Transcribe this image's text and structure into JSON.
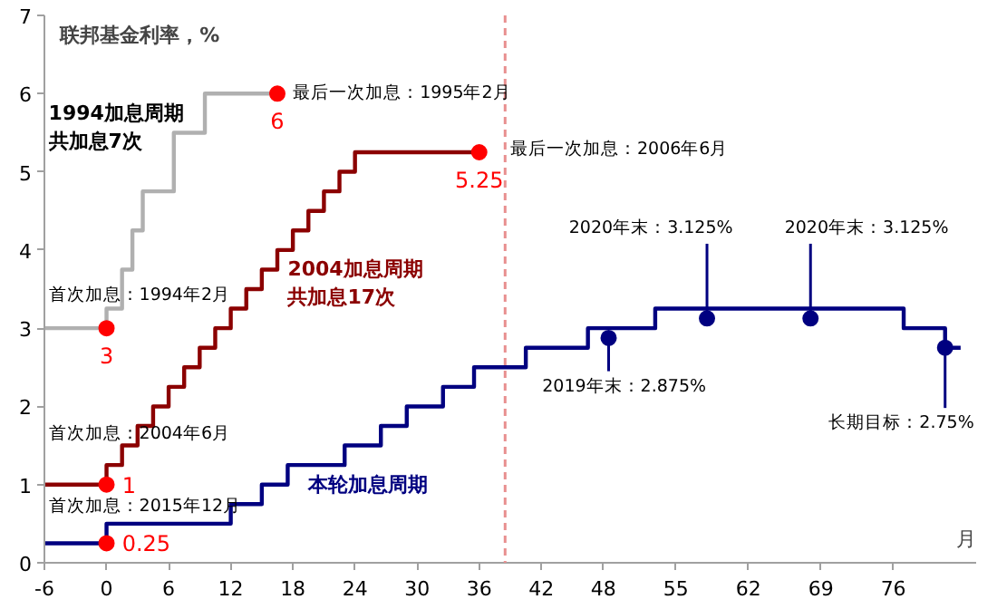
{
  "chart_data": {
    "type": "step",
    "ylabel": "联邦基金利率，%",
    "xlabel": "月",
    "xlim": [
      -6,
      84
    ],
    "ylim": [
      0,
      7
    ],
    "xticks": [
      -6,
      0,
      6,
      12,
      18,
      24,
      30,
      36,
      42,
      48,
      55,
      62,
      69,
      76
    ],
    "yticks": [
      0,
      1,
      2,
      3,
      4,
      5,
      6,
      7
    ],
    "grid": false,
    "line_style": "solid",
    "series": [
      {
        "name": "1994加息周期共加息7次",
        "color": "#b0b0b0",
        "x": [
          -6,
          0,
          1.5,
          2.5,
          3.5,
          6.5,
          9.5,
          12,
          16.5
        ],
        "values": [
          3,
          3.25,
          3.75,
          4.25,
          4.75,
          5.5,
          6,
          6,
          6
        ]
      },
      {
        "name": "2004加息周期共加息17次",
        "color": "#8b0000",
        "x": [
          -6,
          0,
          1.5,
          3,
          4.5,
          6,
          7.5,
          9,
          10.5,
          12,
          13.5,
          15,
          16.5,
          18,
          19.5,
          21,
          22.5,
          24,
          36
        ],
        "values": [
          1,
          1.25,
          1.5,
          1.75,
          2,
          2.25,
          2.5,
          2.75,
          3,
          3.25,
          3.5,
          3.75,
          4,
          4.25,
          4.5,
          4.75,
          5,
          5.25,
          5.25
        ]
      },
      {
        "name": "本轮加息周期",
        "color": "#000080",
        "x": [
          -6,
          0,
          12,
          15,
          17.5,
          23,
          26.5,
          29,
          32.5,
          35.5,
          40.5,
          46.5,
          53,
          77,
          81,
          82.5
        ],
        "values": [
          0.25,
          0.5,
          0.75,
          1,
          1.25,
          1.5,
          1.75,
          2,
          2.25,
          2.5,
          2.75,
          3,
          3.25,
          3,
          2.75,
          2.75
        ]
      },
      {
        "type": "scatter",
        "marker": "circle",
        "color": "#ff0000",
        "x": [
          0,
          0,
          0,
          16.5,
          36
        ],
        "values": [
          3,
          1,
          0.25,
          6,
          5.25
        ],
        "value_labels": [
          "3",
          "1",
          "0.25",
          "6",
          "5.25"
        ]
      },
      {
        "type": "scatter",
        "marker": "circle",
        "color": "#000080",
        "x": [
          48.5,
          58,
          68,
          81
        ],
        "values": [
          2.875,
          3.125,
          3.125,
          2.75
        ]
      }
    ],
    "ref_lines": [
      {
        "axis": "x",
        "value": 38.5,
        "color": "#e89090",
        "line_style": "dashed"
      }
    ],
    "annotations": [
      {
        "text": "首次加息：1994年2月",
        "x": 0,
        "y": 3
      },
      {
        "text": "最后一次加息：1995年2月",
        "x": 16.5,
        "y": 6
      },
      {
        "text": "首次加息：2004年6月",
        "x": 0,
        "y": 1
      },
      {
        "text": "最后一次加息：2006年6月",
        "x": 36,
        "y": 5.25
      },
      {
        "text": "首次加息：2015年12月",
        "x": 0,
        "y": 0.25
      },
      {
        "text": "2019年末：2.875%",
        "x": 48.5,
        "y": 2.875
      },
      {
        "text": "2020年末：3.125%",
        "x": 58,
        "y": 3.125
      },
      {
        "text": "2020年末：3.125%",
        "x": 68,
        "y": 3.125
      },
      {
        "text": "长期目标：2.75%",
        "x": 81,
        "y": 2.75
      }
    ]
  }
}
